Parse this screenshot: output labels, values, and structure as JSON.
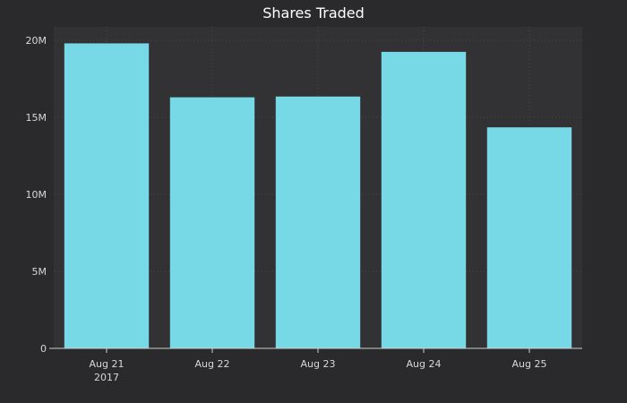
{
  "chart_data": {
    "type": "bar",
    "title": "Shares Traded",
    "categories": [
      "Aug 21",
      "Aug 22",
      "Aug 23",
      "Aug 24",
      "Aug 25"
    ],
    "category_sublabels": [
      "2017",
      "",
      "",
      "",
      ""
    ],
    "values": [
      19800000,
      16300000,
      16350000,
      19250000,
      14350000
    ],
    "ylim": [
      0,
      20000000
    ],
    "yticks": [
      0,
      5000000,
      10000000,
      15000000,
      20000000
    ],
    "ytick_labels": [
      "0",
      "5M",
      "10M",
      "15M",
      "20M"
    ],
    "xlabel": "",
    "ylabel": "",
    "grid": true,
    "colors": {
      "bar": "#77d9e5",
      "background": "#2a292b",
      "plot_background": "#323134",
      "text": "#d8d8d8"
    }
  }
}
